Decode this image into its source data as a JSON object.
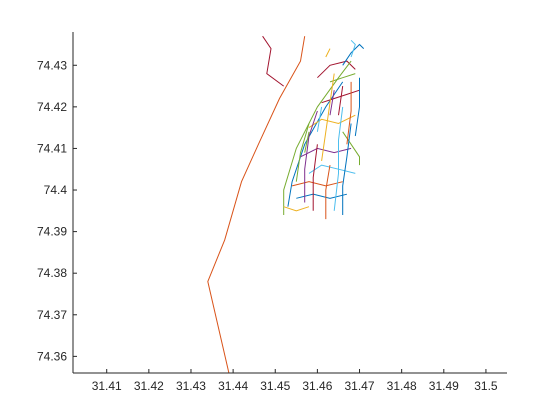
{
  "chart_data": {
    "type": "line",
    "title": "",
    "xlabel": "",
    "ylabel": "",
    "xlim": [
      31.402,
      31.505
    ],
    "ylim": [
      74.356,
      74.438
    ],
    "x_ticks": [
      "31.41",
      "31.42",
      "31.43",
      "31.44",
      "31.45",
      "31.46",
      "31.47",
      "31.48",
      "31.49",
      "31.5"
    ],
    "y_ticks": [
      "74.36",
      "74.37",
      "74.38",
      "74.39",
      "74.4",
      "74.41",
      "74.42",
      "74.43"
    ],
    "grid": false,
    "box": "left-bottom axes only",
    "colors": [
      "#0072BD",
      "#D95319",
      "#EDB120",
      "#7E2F8E",
      "#77AC30",
      "#4DBEEE",
      "#A2142F"
    ],
    "series": [
      {
        "color_index": 1,
        "points": [
          [
            31.439,
            74.356
          ],
          [
            31.434,
            74.378
          ],
          [
            31.438,
            74.388
          ],
          [
            31.442,
            74.402
          ],
          [
            31.446,
            74.411
          ],
          [
            31.451,
            74.422
          ],
          [
            31.456,
            74.431
          ],
          [
            31.457,
            74.437
          ]
        ]
      },
      {
        "color_index": 6,
        "points": [
          [
            31.447,
            74.437
          ],
          [
            31.449,
            74.434
          ],
          [
            31.448,
            74.428
          ],
          [
            31.452,
            74.425
          ]
        ]
      },
      {
        "color_index": 6,
        "points": [
          [
            31.46,
            74.427
          ],
          [
            31.463,
            74.43
          ],
          [
            31.467,
            74.431
          ],
          [
            31.469,
            74.429
          ]
        ]
      },
      {
        "color_index": 4,
        "points": [
          [
            31.452,
            74.394
          ],
          [
            31.452,
            74.4
          ],
          [
            31.455,
            74.41
          ],
          [
            31.46,
            74.42
          ],
          [
            31.465,
            74.427
          ],
          [
            31.468,
            74.431
          ]
        ]
      },
      {
        "color_index": 0,
        "points": [
          [
            31.453,
            74.396
          ],
          [
            31.454,
            74.402
          ],
          [
            31.457,
            74.411
          ],
          [
            31.462,
            74.42
          ],
          [
            31.466,
            74.426
          ]
        ]
      },
      {
        "color_index": 0,
        "points": [
          [
            31.466,
            74.43
          ],
          [
            31.468,
            74.433
          ],
          [
            31.47,
            74.435
          ],
          [
            31.471,
            74.434
          ]
        ]
      },
      {
        "color_index": 5,
        "points": [
          [
            31.468,
            74.432
          ],
          [
            31.469,
            74.435
          ],
          [
            31.468,
            74.436
          ]
        ]
      },
      {
        "color_index": 2,
        "points": [
          [
            31.462,
            74.432
          ],
          [
            31.463,
            74.434
          ]
        ]
      },
      {
        "color_index": 4,
        "points": [
          [
            31.466,
            74.414
          ],
          [
            31.468,
            74.411
          ],
          [
            31.47,
            74.408
          ],
          [
            31.47,
            74.406
          ]
        ]
      },
      {
        "color_index": 5,
        "points": [
          [
            31.458,
            74.404
          ],
          [
            31.461,
            74.406
          ],
          [
            31.465,
            74.405
          ],
          [
            31.469,
            74.404
          ]
        ]
      },
      {
        "color_index": 1,
        "points": [
          [
            31.454,
            74.401
          ],
          [
            31.458,
            74.402
          ],
          [
            31.462,
            74.401
          ],
          [
            31.466,
            74.402
          ]
        ]
      },
      {
        "color_index": 3,
        "points": [
          [
            31.456,
            74.408
          ],
          [
            31.46,
            74.41
          ],
          [
            31.464,
            74.409
          ],
          [
            31.468,
            74.41
          ]
        ]
      },
      {
        "color_index": 2,
        "points": [
          [
            31.458,
            74.415
          ],
          [
            31.461,
            74.417
          ],
          [
            31.465,
            74.416
          ],
          [
            31.469,
            74.418
          ]
        ]
      },
      {
        "color_index": 6,
        "points": [
          [
            31.461,
            74.421
          ],
          [
            31.464,
            74.422
          ],
          [
            31.467,
            74.423
          ],
          [
            31.47,
            74.424
          ]
        ]
      },
      {
        "color_index": 4,
        "points": [
          [
            31.463,
            74.426
          ],
          [
            31.466,
            74.427
          ],
          [
            31.469,
            74.428
          ]
        ]
      },
      {
        "color_index": 0,
        "points": [
          [
            31.455,
            74.398
          ],
          [
            31.459,
            74.399
          ],
          [
            31.463,
            74.398
          ],
          [
            31.467,
            74.399
          ]
        ]
      },
      {
        "color_index": 2,
        "points": [
          [
            31.452,
            74.396
          ],
          [
            31.455,
            74.395
          ],
          [
            31.458,
            74.396
          ]
        ]
      },
      {
        "color_index": 1,
        "points": [
          [
            31.462,
            74.393
          ],
          [
            31.462,
            74.4
          ],
          [
            31.463,
            74.406
          ]
        ]
      },
      {
        "color_index": 0,
        "points": [
          [
            31.466,
            74.394
          ],
          [
            31.466,
            74.401
          ],
          [
            31.467,
            74.408
          ],
          [
            31.468,
            74.416
          ]
        ]
      },
      {
        "color_index": 6,
        "points": [
          [
            31.459,
            74.395
          ],
          [
            31.459,
            74.403
          ],
          [
            31.46,
            74.411
          ]
        ]
      },
      {
        "color_index": 3,
        "points": [
          [
            31.457,
            74.397
          ],
          [
            31.457,
            74.405
          ],
          [
            31.458,
            74.413
          ],
          [
            31.46,
            74.419
          ]
        ]
      },
      {
        "color_index": 5,
        "points": [
          [
            31.464,
            74.395
          ],
          [
            31.465,
            74.404
          ],
          [
            31.465,
            74.412
          ],
          [
            31.466,
            74.42
          ]
        ]
      },
      {
        "color_index": 2,
        "points": [
          [
            31.461,
            74.407
          ],
          [
            31.462,
            74.414
          ],
          [
            31.463,
            74.421
          ],
          [
            31.464,
            74.428
          ]
        ]
      },
      {
        "color_index": 4,
        "points": [
          [
            31.455,
            74.402
          ],
          [
            31.456,
            74.409
          ],
          [
            31.458,
            74.416
          ]
        ]
      },
      {
        "color_index": 1,
        "points": [
          [
            31.467,
            74.411
          ],
          [
            31.468,
            74.419
          ],
          [
            31.468,
            74.426
          ]
        ]
      },
      {
        "color_index": 0,
        "points": [
          [
            31.469,
            74.413
          ],
          [
            31.47,
            74.42
          ],
          [
            31.47,
            74.427
          ]
        ]
      },
      {
        "color_index": 6,
        "points": [
          [
            31.465,
            74.418
          ],
          [
            31.466,
            74.425
          ]
        ]
      },
      {
        "color_index": 3,
        "points": [
          [
            31.463,
            74.418
          ],
          [
            31.464,
            74.424
          ]
        ]
      },
      {
        "color_index": 5,
        "points": [
          [
            31.46,
            74.414
          ],
          [
            31.461,
            74.42
          ]
        ]
      },
      {
        "color_index": 4,
        "points": [
          [
            31.457,
            74.409
          ],
          [
            31.458,
            74.414
          ]
        ]
      }
    ]
  }
}
